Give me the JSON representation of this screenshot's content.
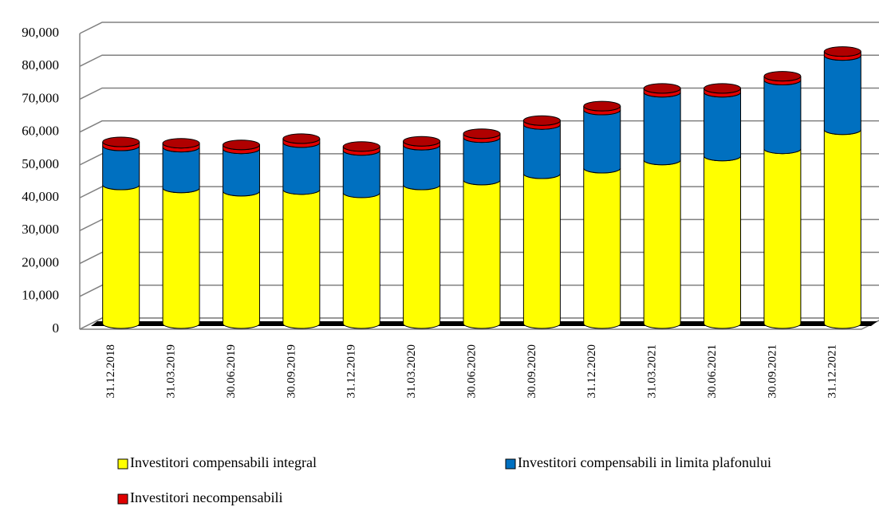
{
  "chart_data": {
    "type": "bar3d_stacked",
    "categories": [
      "31.12.2018",
      "31.03.2019",
      "30.06.2019",
      "30.09.2019",
      "31.12.2019",
      "31.03.2020",
      "30.06.2020",
      "30.09.2020",
      "31.12.2020",
      "31.03.2021",
      "30.06.2021",
      "30.09.2021",
      "31.12.2021"
    ],
    "series": [
      {
        "name": "Investitori compensabili integral",
        "color": "#ffff00",
        "values": [
          42200,
          41300,
          40300,
          40800,
          39800,
          42200,
          43700,
          45600,
          47300,
          49800,
          51000,
          53200,
          59000
        ]
      },
      {
        "name": "Investitori compensabili in limita plafonului",
        "color": "#0070c0",
        "values": [
          11900,
          12400,
          12900,
          14300,
          12900,
          12100,
          12900,
          15000,
          17700,
          20600,
          19400,
          20900,
          22600
        ]
      },
      {
        "name": "Investitori necompensabili",
        "color": "#e00000",
        "values": [
          1200,
          1200,
          1200,
          1200,
          1200,
          1200,
          1200,
          1200,
          1200,
          1200,
          1200,
          1200,
          1200
        ]
      }
    ],
    "ylim": [
      0,
      90000
    ],
    "yticks": [
      0,
      {
        "value": 10000,
        "label": "10,000"
      },
      {
        "value": 20000,
        "label": "20,000"
      },
      {
        "value": 30000,
        "label": "30,000"
      },
      {
        "value": 40000,
        "label": "40,000"
      },
      {
        "value": 50000,
        "label": "50,000"
      },
      {
        "value": 60000,
        "label": "60,000"
      },
      {
        "value": 70000,
        "label": "70,000"
      },
      {
        "value": 80000,
        "label": "80,000"
      },
      {
        "value": 90000,
        "label": "90,000"
      }
    ],
    "grid": true
  }
}
